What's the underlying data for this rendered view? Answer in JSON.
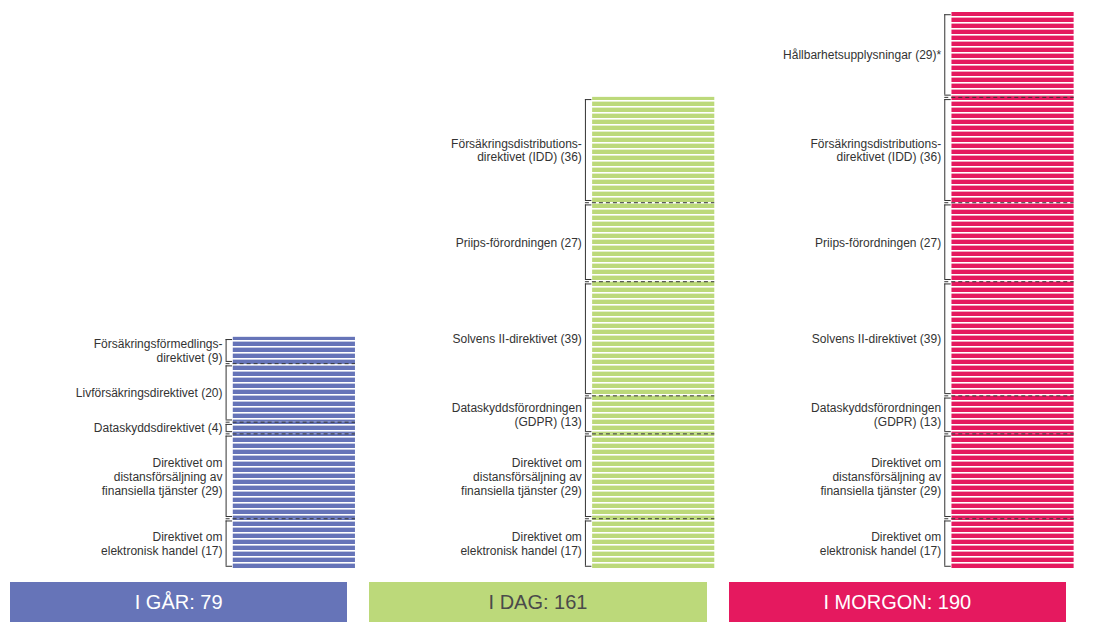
{
  "chart_data": {
    "type": "bar",
    "stacked": true,
    "tick_labels": false,
    "ylim": [
      0,
      190
    ],
    "categories": [
      "I GÅR: 79",
      "I DAG: 161",
      "I MORGON: 190"
    ],
    "colors": [
      "#6674b8",
      "#bcd97a",
      "#e5195f"
    ],
    "stacks": [
      [
        {
          "label": "Direktivet om\nelektronisk handel (17)",
          "value": 17
        },
        {
          "label": "Direktivet om\ndistansförsäljning av\nfinansiella tjänster (29)",
          "value": 29
        },
        {
          "label": "Dataskyddsdirektivet (4)",
          "value": 4
        },
        {
          "label": "Livförsäkringsdirektivet (20)",
          "value": 20
        },
        {
          "label": "Försäkringsförmedlings-\ndirektivet (9)",
          "value": 9
        }
      ],
      [
        {
          "label": "Direktivet om\nelektronisk handel (17)",
          "value": 17
        },
        {
          "label": "Direktivet om\ndistansförsäljning av\nfinansiella tjänster (29)",
          "value": 29
        },
        {
          "label": "Dataskyddsförordningen\n(GDPR) (13)",
          "value": 13
        },
        {
          "label": "Solvens II-direktivet (39)",
          "value": 39
        },
        {
          "label": "Priips-förordningen (27)",
          "value": 27
        },
        {
          "label": "Försäkringsdistributions-\ndirektivet (IDD) (36)",
          "value": 36
        }
      ],
      [
        {
          "label": "Direktivet om\nelektronisk handel (17)",
          "value": 17
        },
        {
          "label": "Direktivet om\ndistansförsäljning av\nfinansiella tjänster (29)",
          "value": 29
        },
        {
          "label": "Dataskyddsförordningen\n(GDPR) (13)",
          "value": 13
        },
        {
          "label": "Solvens II-direktivet (39)",
          "value": 39
        },
        {
          "label": "Priips-förordningen (27)",
          "value": 27
        },
        {
          "label": "Försäkringsdistributions-\ndirektivet (IDD) (36)",
          "value": 36
        },
        {
          "label": "Hållbarhetsupplysningar (29)*",
          "value": 29
        }
      ]
    ]
  }
}
